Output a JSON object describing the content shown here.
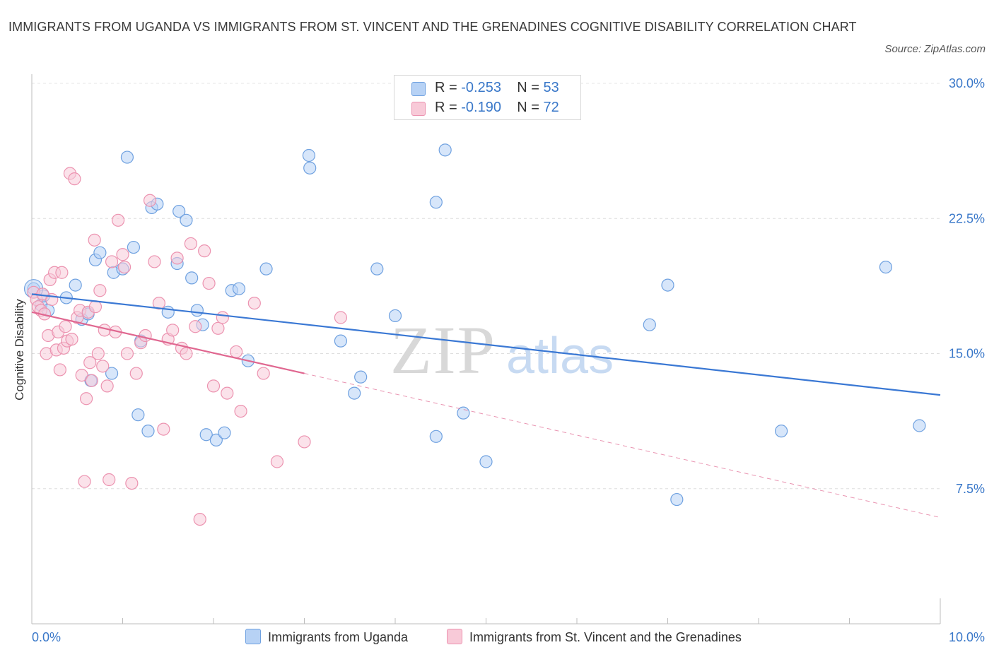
{
  "title": "IMMIGRANTS FROM UGANDA VS IMMIGRANTS FROM ST. VINCENT AND THE GRENADINES COGNITIVE DISABILITY CORRELATION CHART",
  "source": "Source: ZipAtlas.com",
  "watermark": {
    "zip": "ZIP",
    "atlas": "atlas"
  },
  "legend_top": {
    "rows": [
      {
        "r_label": "R = ",
        "r_value": "-0.253",
        "n_label": "N = ",
        "n_value": "53",
        "color": "#a9c8f0"
      },
      {
        "r_label": "R = ",
        "r_value": "-0.190",
        "n_label": "N = ",
        "n_value": "72",
        "color": "#f4b8cb"
      }
    ]
  },
  "chart_data": {
    "type": "scatter",
    "title": "IMMIGRANTS FROM UGANDA VS IMMIGRANTS FROM ST. VINCENT AND THE GRENADINES COGNITIVE DISABILITY CORRELATION CHART",
    "xlabel": "",
    "ylabel": "Cognitive Disability",
    "xlim": [
      0,
      10
    ],
    "ylim": [
      0,
      30
    ],
    "x_tick_labels": [
      "0.0%",
      "10.0%"
    ],
    "y_tick_labels": [
      "7.5%",
      "15.0%",
      "22.5%",
      "30.0%"
    ],
    "y_ticks": [
      7.5,
      15.0,
      22.5,
      30.0
    ],
    "x_ticks": [
      0,
      10
    ],
    "grid": true,
    "legend_position": "bottom",
    "series": [
      {
        "name": "Immigrants from Uganda",
        "color": "#6fa1e0",
        "fill": "#b7d2f5",
        "trend": {
          "x": [
            0,
            10
          ],
          "y": [
            18.3,
            12.7
          ],
          "color": "#3a78d4"
        },
        "points": [
          [
            0.02,
            18.6
          ],
          [
            0.1,
            17.7
          ],
          [
            0.13,
            18.2
          ],
          [
            0.18,
            17.4
          ],
          [
            0.38,
            18.1
          ],
          [
            0.48,
            18.8
          ],
          [
            0.55,
            16.9
          ],
          [
            0.62,
            17.2
          ],
          [
            0.7,
            20.2
          ],
          [
            0.65,
            13.5
          ],
          [
            0.75,
            20.6
          ],
          [
            0.88,
            13.9
          ],
          [
            0.9,
            19.5
          ],
          [
            1.0,
            19.7
          ],
          [
            1.05,
            25.9
          ],
          [
            1.12,
            20.9
          ],
          [
            1.17,
            11.6
          ],
          [
            1.2,
            15.7
          ],
          [
            1.28,
            10.7
          ],
          [
            1.32,
            23.1
          ],
          [
            1.38,
            23.3
          ],
          [
            1.5,
            17.3
          ],
          [
            1.62,
            22.9
          ],
          [
            1.6,
            20.0
          ],
          [
            1.7,
            22.4
          ],
          [
            1.76,
            19.2
          ],
          [
            1.82,
            17.4
          ],
          [
            1.88,
            16.6
          ],
          [
            1.92,
            10.5
          ],
          [
            2.03,
            10.2
          ],
          [
            2.12,
            10.6
          ],
          [
            2.2,
            18.5
          ],
          [
            2.28,
            18.6
          ],
          [
            2.38,
            14.6
          ],
          [
            2.58,
            19.7
          ],
          [
            3.05,
            26.0
          ],
          [
            3.06,
            25.3
          ],
          [
            3.4,
            15.7
          ],
          [
            3.55,
            12.8
          ],
          [
            3.62,
            13.7
          ],
          [
            3.8,
            19.7
          ],
          [
            4.0,
            17.1
          ],
          [
            4.45,
            10.4
          ],
          [
            4.45,
            23.4
          ],
          [
            4.55,
            26.3
          ],
          [
            4.75,
            11.7
          ],
          [
            5.0,
            9.0
          ],
          [
            6.8,
            16.6
          ],
          [
            7.0,
            18.8
          ],
          [
            7.1,
            6.9
          ],
          [
            8.25,
            10.7
          ],
          [
            9.4,
            19.8
          ],
          [
            9.77,
            11.0
          ]
        ]
      },
      {
        "name": "Immigrants from St. Vincent and the Grenadines",
        "color": "#ec93b0",
        "fill": "#f8cad8",
        "trend": {
          "x": [
            0,
            3.0
          ],
          "y": [
            17.3,
            13.9
          ],
          "color": "#e06790",
          "dashed_to": {
            "x": 10,
            "y": 5.9
          }
        },
        "points": [
          [
            0.02,
            18.4
          ],
          [
            0.05,
            18.0
          ],
          [
            0.07,
            17.6
          ],
          [
            0.1,
            17.4
          ],
          [
            0.12,
            18.3
          ],
          [
            0.14,
            17.2
          ],
          [
            0.16,
            15.0
          ],
          [
            0.18,
            16.0
          ],
          [
            0.2,
            19.1
          ],
          [
            0.22,
            18.0
          ],
          [
            0.25,
            19.5
          ],
          [
            0.27,
            15.2
          ],
          [
            0.29,
            16.2
          ],
          [
            0.31,
            14.1
          ],
          [
            0.33,
            19.5
          ],
          [
            0.35,
            15.3
          ],
          [
            0.37,
            16.5
          ],
          [
            0.39,
            15.7
          ],
          [
            0.42,
            25.0
          ],
          [
            0.44,
            15.8
          ],
          [
            0.47,
            24.7
          ],
          [
            0.5,
            17.0
          ],
          [
            0.53,
            17.4
          ],
          [
            0.55,
            13.8
          ],
          [
            0.58,
            7.9
          ],
          [
            0.6,
            12.5
          ],
          [
            0.62,
            17.3
          ],
          [
            0.64,
            14.5
          ],
          [
            0.66,
            13.5
          ],
          [
            0.69,
            21.3
          ],
          [
            0.7,
            17.6
          ],
          [
            0.73,
            15.0
          ],
          [
            0.75,
            18.5
          ],
          [
            0.78,
            14.3
          ],
          [
            0.8,
            16.3
          ],
          [
            0.83,
            13.2
          ],
          [
            0.85,
            8.0
          ],
          [
            0.88,
            20.1
          ],
          [
            0.92,
            16.2
          ],
          [
            0.95,
            22.4
          ],
          [
            1.0,
            20.5
          ],
          [
            1.02,
            19.8
          ],
          [
            1.05,
            15.0
          ],
          [
            1.1,
            7.8
          ],
          [
            1.15,
            13.9
          ],
          [
            1.2,
            15.6
          ],
          [
            1.25,
            16.0
          ],
          [
            1.3,
            23.5
          ],
          [
            1.35,
            20.1
          ],
          [
            1.4,
            17.8
          ],
          [
            1.45,
            10.8
          ],
          [
            1.5,
            15.8
          ],
          [
            1.55,
            16.3
          ],
          [
            1.6,
            20.3
          ],
          [
            1.65,
            15.3
          ],
          [
            1.7,
            15.0
          ],
          [
            1.75,
            21.1
          ],
          [
            1.8,
            16.5
          ],
          [
            1.85,
            5.8
          ],
          [
            1.9,
            20.7
          ],
          [
            1.95,
            18.9
          ],
          [
            2.0,
            13.2
          ],
          [
            2.05,
            16.4
          ],
          [
            2.1,
            17.0
          ],
          [
            2.15,
            12.8
          ],
          [
            2.25,
            15.1
          ],
          [
            2.3,
            11.8
          ],
          [
            2.45,
            17.8
          ],
          [
            2.55,
            13.9
          ],
          [
            2.7,
            9.0
          ],
          [
            3.0,
            10.1
          ],
          [
            3.4,
            17.0
          ]
        ]
      }
    ]
  }
}
